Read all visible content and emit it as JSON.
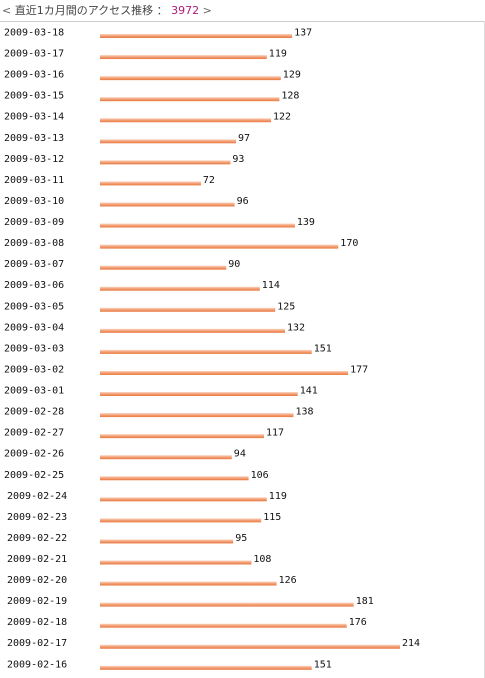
{
  "header": {
    "open": "<",
    "title": "直近1カ月間のアクセス推移 ：",
    "total": "3972",
    "close": ">"
  },
  "colors": {
    "bar_main": "#f4a27a",
    "bar_light": "#fbd7c2",
    "bar_dark": "#e8793f",
    "total_text": "#b0197a"
  },
  "chart_data": {
    "type": "bar",
    "orientation": "horizontal",
    "title": "直近1カ月間のアクセス推移",
    "total": 3972,
    "categories": [
      "2009-03-18",
      "2009-03-17",
      "2009-03-16",
      "2009-03-15",
      "2009-03-14",
      "2009-03-13",
      "2009-03-12",
      "2009-03-11",
      "2009-03-10",
      "2009-03-09",
      "2009-03-08",
      "2009-03-07",
      "2009-03-06",
      "2009-03-05",
      "2009-03-04",
      "2009-03-03",
      "2009-03-02",
      "2009-03-01",
      "2009-02-28",
      "2009-02-27",
      "2009-02-26",
      "2009-02-25",
      "2009-02-24",
      "2009-02-23",
      "2009-02-22",
      "2009-02-21",
      "2009-02-20",
      "2009-02-19",
      "2009-02-18",
      "2009-02-17",
      "2009-02-16"
    ],
    "values": [
      137,
      119,
      129,
      128,
      122,
      97,
      93,
      72,
      96,
      139,
      170,
      90,
      114,
      125,
      132,
      151,
      177,
      141,
      138,
      117,
      94,
      106,
      119,
      115,
      95,
      108,
      126,
      181,
      176,
      214,
      151
    ],
    "xlim": [
      0,
      214
    ],
    "grid": false,
    "legend": "none"
  }
}
